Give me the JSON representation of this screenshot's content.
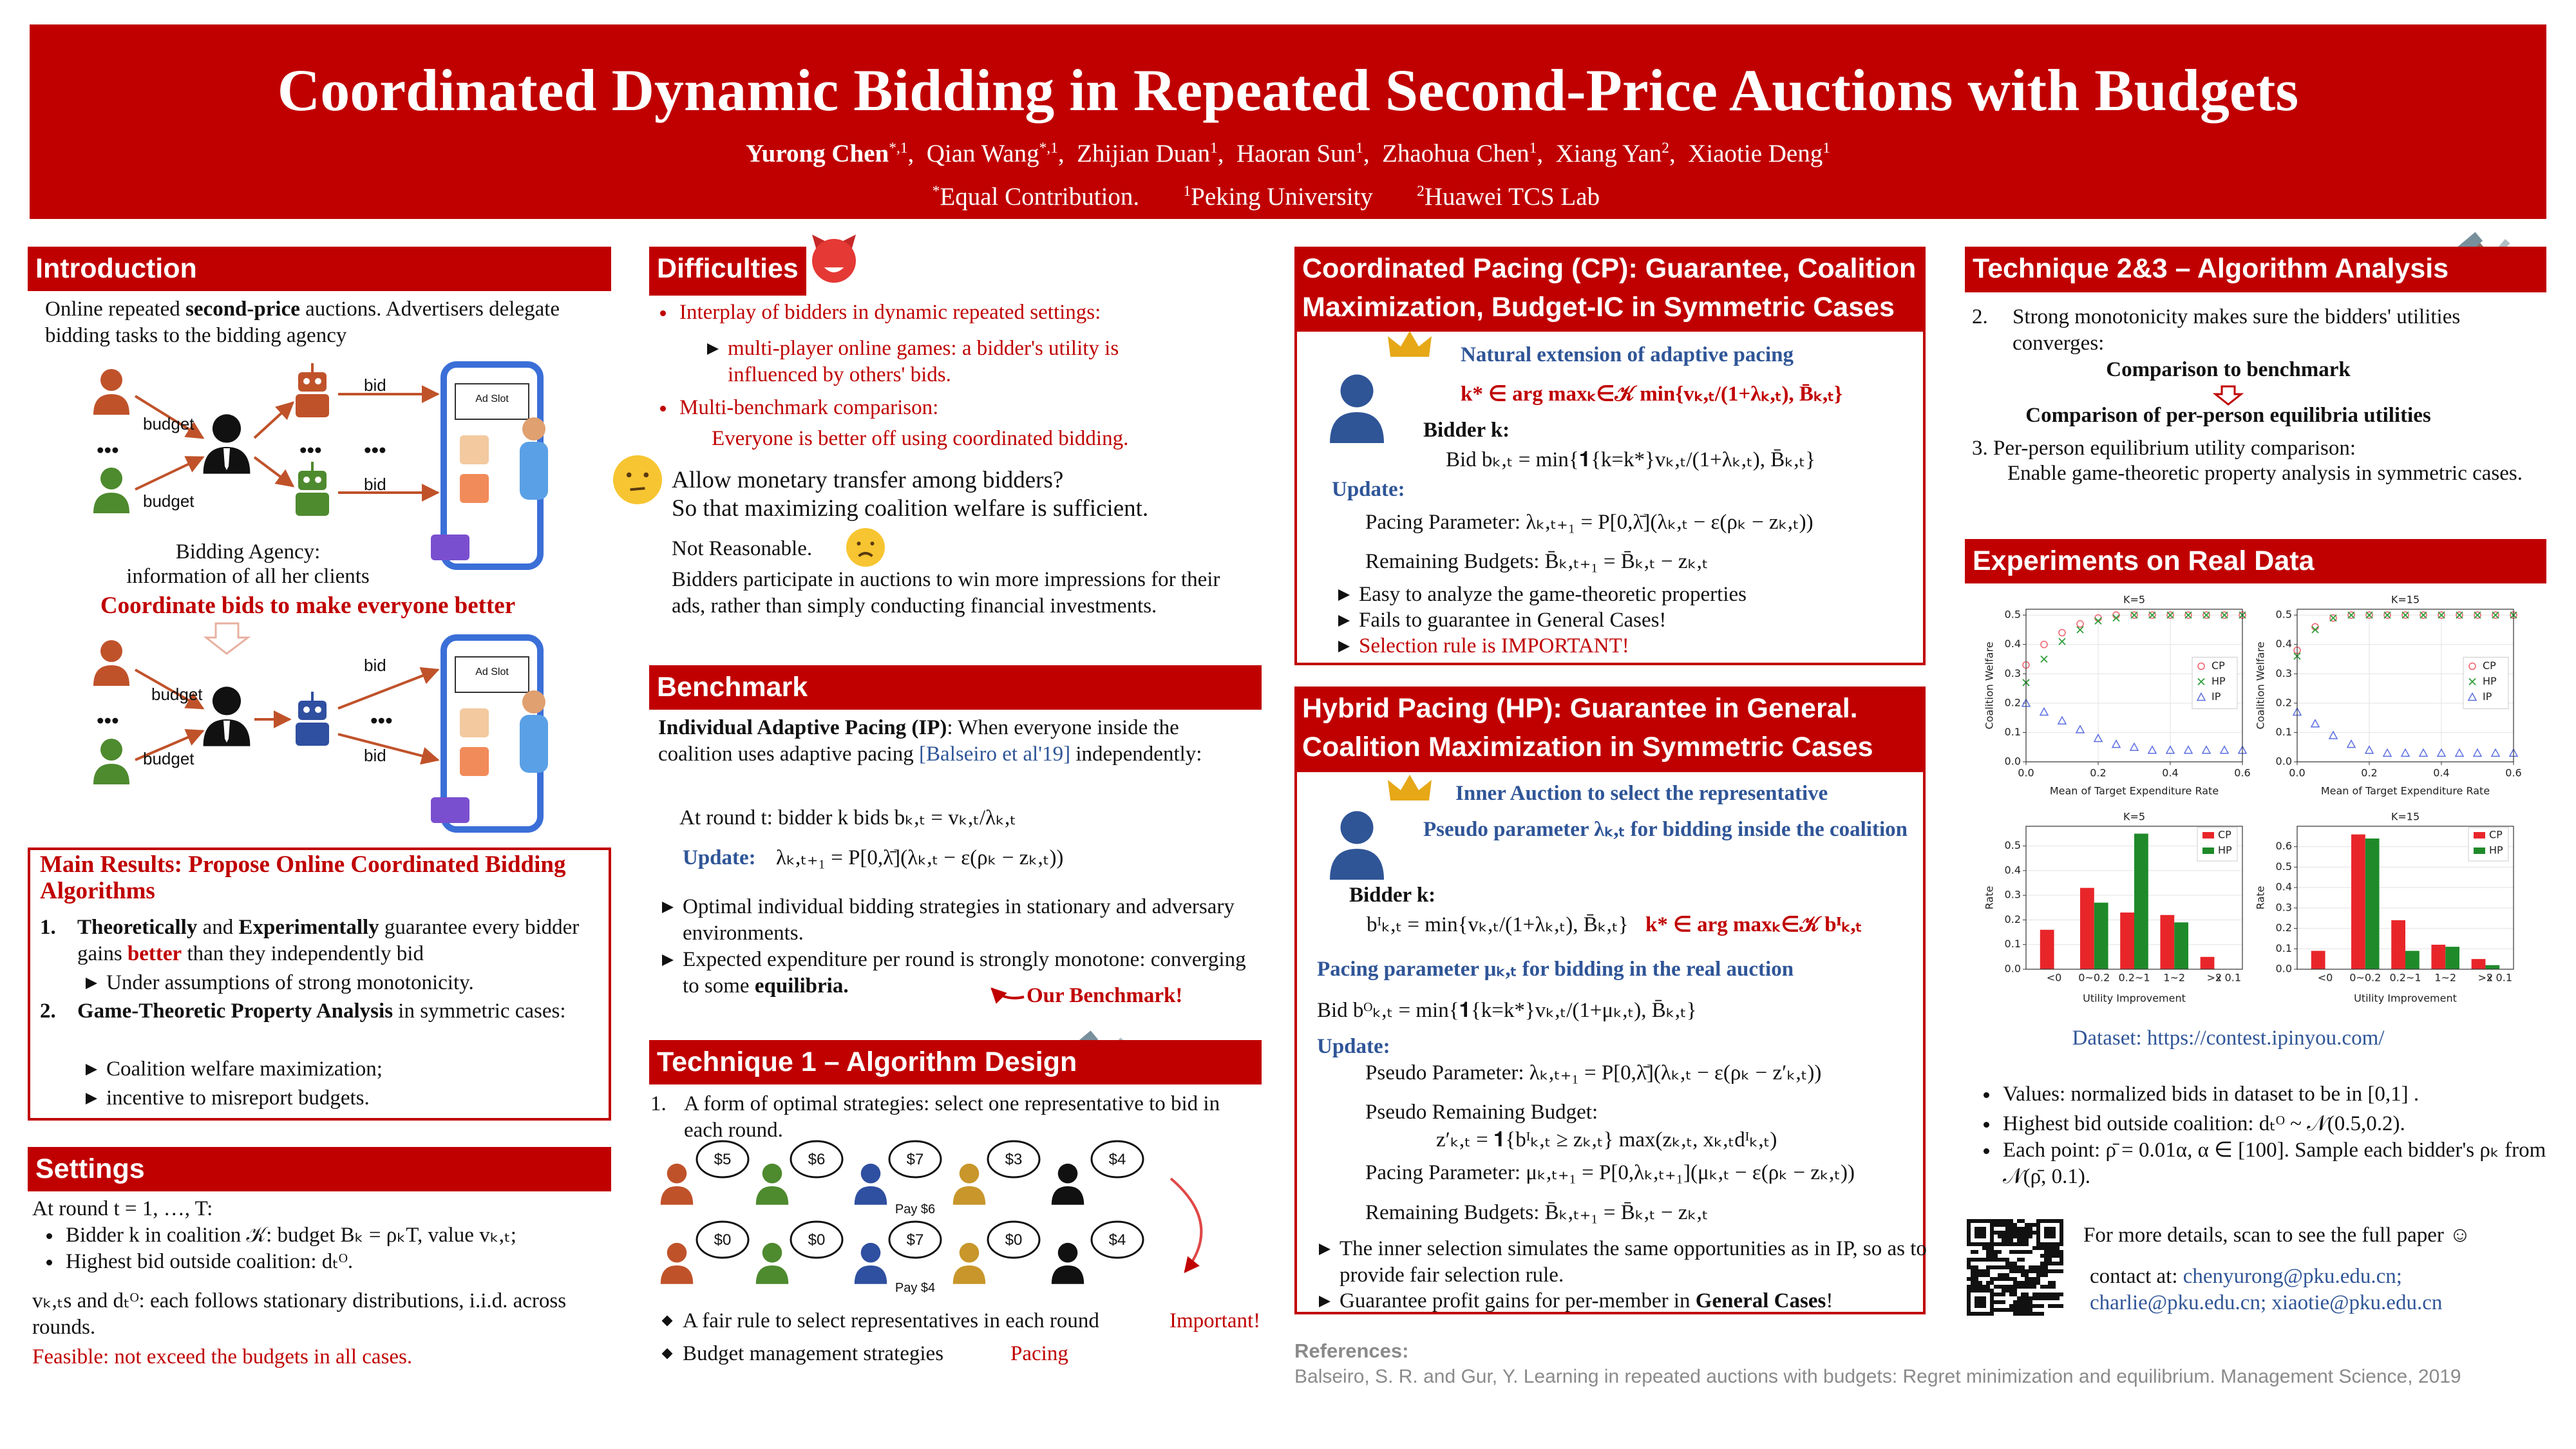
{
  "header": {
    "title": "Coordinated Dynamic Bidding in Repeated Second-Price Auctions with Budgets",
    "authors": [
      {
        "name": "Yurong Chen",
        "mark": "*,1"
      },
      {
        "name": "Qian Wang",
        "mark": "*,1"
      },
      {
        "name": "Zhijian Duan",
        "mark": "1"
      },
      {
        "name": "Haoran Sun",
        "mark": "1"
      },
      {
        "name": "Zhaohua Chen",
        "mark": "1"
      },
      {
        "name": "Xiang Yan",
        "mark": "2"
      },
      {
        "name": "Xiaotie Deng",
        "mark": "1"
      }
    ],
    "affiliations": [
      {
        "mark": "*",
        "text": "Equal Contribution."
      },
      {
        "mark": "1",
        "text": "Peking University"
      },
      {
        "mark": "2",
        "text": "Huawei TCS Lab"
      }
    ]
  },
  "introduction": {
    "heading": "Introduction",
    "text": [
      "Online repeated ",
      "second-price",
      " auctions. Advertisers delegate bidding tasks to the bidding agency"
    ],
    "budget": "budget",
    "bid": "bid",
    "ellipsis": "•••",
    "ad_slot": "Ad Slot",
    "agency": "Bidding Agency:",
    "agency_info": "information of all her clients",
    "goal": "Coordinate bids to make everyone better"
  },
  "main_results": {
    "heading": "Main Results: Propose Online Coordinated Bidding Algorithms",
    "items": [
      {
        "number": "1.",
        "text": [
          "Theoretically",
          " and ",
          "Experimentally",
          " guarantee every bidder gains ",
          "better",
          " than they independently bid"
        ],
        "subs": [
          "Under assumptions of strong monotonicity."
        ]
      },
      {
        "number": "2.",
        "text": [
          "Game-Theoretic Property Analysis",
          " in symmetric cases:"
        ],
        "subs": [
          "Coalition welfare maximization;",
          "incentive to misreport budgets."
        ]
      }
    ]
  },
  "settings": {
    "heading": "Settings",
    "round": "At round t = 1, …, T:",
    "bullets": [
      "Bidder k in coalition 𝒦: budget Bₖ = ρₖT, value vₖ,ₜ;",
      "Highest bid outside coalition: dₜᴼ."
    ],
    "distribution": "vₖ,ₜs and dₜᴼ:  each follows stationary distributions, i.i.d. across rounds.",
    "feasible": "Feasible: not exceed the budgets in all cases."
  },
  "difficulties": {
    "heading": "Difficulties",
    "bullet1": "Interplay of bidders in dynamic repeated settings:",
    "sub1": "multi-player online games: a bidder's utility is influenced by others' bids.",
    "bullet2": "Multi-benchmark comparison:",
    "sub2": "Everyone is better off using coordinated bidding.",
    "question": "Allow monetary transfer among bidders?",
    "question2": "So that maximizing coalition welfare is sufficient.",
    "answer": "Not Reasonable.",
    "reason": "Bidders participate in auctions to win more impressions for their ads, rather than simply conducting financial investments."
  },
  "benchmark": {
    "heading": "Benchmark",
    "intro": [
      "Individual Adaptive Pacing (IP)",
      ": When everyone inside the coalition uses adaptive pacing ",
      "[Balseiro et al'19]",
      " independently:"
    ],
    "round": "At round t: bidder k bids bₖ,ₜ = vₖ,ₜ/λₖ,ₜ",
    "update_label": "Update:",
    "update": "λₖ,ₜ₊₁ = P[0,λ̄](λₖ,ₜ − ε(ρₖ − zₖ,ₜ))",
    "bullet1": "Optimal individual bidding strategies in stationary and adversary environments.",
    "bullet2": [
      "Expected expenditure per round is strongly monotone: converging to some ",
      "equilibria."
    ],
    "note": "Our Benchmark!"
  },
  "technique1": {
    "heading": "Technique 1 – Algorithm Design",
    "number": "1.",
    "text": "A form of optimal strategies: select one representative to bid in each round.",
    "bids_row1": [
      "$5",
      "$6",
      "$7",
      "$3",
      "$4"
    ],
    "pay_row1": "Pay $6",
    "bids_row2": [
      "$0",
      "$0",
      "$7",
      "$0",
      "$4"
    ],
    "pay_row2": "Pay $4",
    "bullet1": "A fair rule to select representatives in each round",
    "note1": "Important!",
    "bullet2": "Budget management strategies",
    "note2": "Pacing"
  },
  "cp": {
    "heading": "Coordinated Pacing (CP): Guarantee, Coalition Maximization, Budget-IC in Symmetric Cases",
    "subtitle": "Natural extension of adaptive pacing",
    "select": "k* ∈ arg maxₖ∈𝒦 min{vₖ,ₜ/(1+λₖ,ₜ), B̄ₖ,ₜ}",
    "bidder": "Bidder k:",
    "bid": "Bid bₖ,ₜ = min{𝟏{k=k*}vₖ,ₜ/(1+λₖ,ₜ), B̄ₖ,ₜ}",
    "update_label": "Update:",
    "pacing": "Pacing Parameter: λₖ,ₜ₊₁ = P[0,λ̄](λₖ,ₜ − ε(ρₖ − zₖ,ₜ))",
    "remaining": "Remaining Budgets: B̄ₖ,ₜ₊₁ = B̄ₖ,ₜ − zₖ,ₜ",
    "bullets": [
      "Easy to analyze the game-theoretic properties",
      "Fails to guarantee in General Cases!",
      "Selection rule is IMPORTANT!"
    ]
  },
  "hp": {
    "heading": "Hybrid Pacing (HP): Guarantee in General. Coalition Maximization in Symmetric Cases",
    "inner": "Inner Auction to select the representative",
    "pseudo": "Pseudo parameter λₖ,ₜ for bidding inside the coalition",
    "bidder": "Bidder k:",
    "inner_bid": "bᴵₖ,ₜ = min{vₖ,ₜ/(1+λₖ,ₜ), B̄ₖ,ₜ}",
    "select": "k* ∈ arg maxₖ∈𝒦 bᴵₖ,ₜ",
    "pacing_intro": "Pacing parameter μₖ,ₜ for bidding in the real auction",
    "bid": "Bid bᴼₖ,ₜ = min{𝟏{k=k*}vₖ,ₜ/(1+μₖ,ₜ), B̄ₖ,ₜ}",
    "update_label": "Update:",
    "pseudo_param": "Pseudo Parameter: λₖ,ₜ₊₁ = P[0,λ̄](λₖ,ₜ − ε(ρₖ − z′ₖ,ₜ))",
    "pseudo_budget": "Pseudo Remaining Budget:",
    "pseudo_budget_formula": "z′ₖ,ₜ = 𝟏{bᴵₖ,ₜ ≥ zₖ,ₜ} max(zₖ,ₜ, xₖ,ₜdᴵₖ,ₜ)",
    "pacing": "Pacing Parameter: μₖ,ₜ₊₁ = P[0,λₖ,ₜ₊₁](μₖ,ₜ − ε(ρₖ − zₖ,ₜ))",
    "remaining": "Remaining Budgets: B̄ₖ,ₜ₊₁ = B̄ₖ,ₜ − zₖ,ₜ",
    "bullet1": "The inner selection simulates the same opportunities as in IP, so as to provide fair selection rule.",
    "bullet2": [
      "Guarantee profit gains for per-member in ",
      "General Cases",
      "!"
    ]
  },
  "references": {
    "heading": "References:",
    "text": "Balseiro, S. R. and Gur, Y. Learning in repeated auctions with budgets: Regret minimization and equilibrium. Management Science, 2019"
  },
  "technique23": {
    "heading": "Technique 2&3 – Algorithm Analysis",
    "number2": "2.",
    "text2": "Strong monotonicity makes sure the bidders' utilities converges:",
    "compare1": "Comparison to benchmark",
    "compare2": "Comparison of per-person equilibria utilities",
    "text3": "3. Per-person equilibrium utility comparison:",
    "text3b": "Enable game-theoretic property analysis in symmetric cases."
  },
  "experiments": {
    "heading": "Experiments on Real Data",
    "dataset": "Dataset: https://contest.ipinyou.com/",
    "bullets": [
      "Values: normalized bids in dataset to be in [0,1] .",
      "Highest bid outside coalition: dₜᴼ ~ 𝒩(0.5,0.2).",
      "Each point: ρ̄ = 0.01α, α ∈ [100]. Sample each bidder's ρₖ from 𝒩(ρ̄, 0.1)."
    ],
    "more": "For more details, scan to see the full paper ☺",
    "contact": [
      "contact at: ",
      "chenyurong@pku.edu.cn;"
    ],
    "contact2": "charlie@pku.edu.cn; xiaotie@pku.edu.cn"
  },
  "chart_data": [
    {
      "type": "scatter",
      "title": "K=5",
      "x_label": "Mean of Target Expenditure Rate",
      "y_label": "Coalition Welfare",
      "x": [
        0,
        0.05,
        0.1,
        0.15,
        0.2,
        0.25,
        0.3,
        0.35,
        0.4,
        0.45,
        0.5,
        0.55,
        0.6
      ],
      "series": [
        {
          "name": "CP",
          "color": "#f0606a",
          "marker": "circle",
          "values": [
            0.33,
            0.4,
            0.44,
            0.47,
            0.49,
            0.5,
            0.5,
            0.5,
            0.5,
            0.5,
            0.5,
            0.5,
            0.5
          ]
        },
        {
          "name": "HP",
          "color": "#2e9e3a",
          "marker": "x",
          "values": [
            0.27,
            0.35,
            0.41,
            0.45,
            0.48,
            0.49,
            0.5,
            0.5,
            0.5,
            0.5,
            0.5,
            0.5,
            0.5
          ]
        },
        {
          "name": "IP",
          "color": "#5a6ee0",
          "marker": "triangle",
          "values": [
            0.2,
            0.17,
            0.14,
            0.11,
            0.08,
            0.06,
            0.05,
            0.04,
            0.04,
            0.04,
            0.04,
            0.04,
            0.04
          ]
        }
      ],
      "xlim": [
        0,
        0.6
      ],
      "ylim": [
        0,
        0.52
      ],
      "xticks": [
        {
          "value": 0,
          "label": "0.0"
        },
        0.2,
        0.4,
        0.6
      ],
      "yticks": [
        {
          "value": 0,
          "label": "0.0"
        },
        0.1,
        0.2,
        0.3,
        0.4,
        0.5
      ],
      "legend": "right",
      "grid": true
    },
    {
      "type": "scatter",
      "title": "K=15",
      "x_label": "Mean of Target Expenditure Rate",
      "y_label": "Coalition Welfare",
      "x": [
        0,
        0.05,
        0.1,
        0.15,
        0.2,
        0.25,
        0.3,
        0.35,
        0.4,
        0.45,
        0.5,
        0.55,
        0.6
      ],
      "series": [
        {
          "name": "CP",
          "color": "#f0606a",
          "marker": "circle",
          "values": [
            0.38,
            0.46,
            0.49,
            0.5,
            0.5,
            0.5,
            0.5,
            0.5,
            0.5,
            0.5,
            0.5,
            0.5,
            0.5
          ]
        },
        {
          "name": "HP",
          "color": "#2e9e3a",
          "marker": "x",
          "values": [
            0.36,
            0.45,
            0.49,
            0.5,
            0.5,
            0.5,
            0.5,
            0.5,
            0.5,
            0.5,
            0.5,
            0.5,
            0.5
          ]
        },
        {
          "name": "IP",
          "color": "#5a6ee0",
          "marker": "triangle",
          "values": [
            0.17,
            0.13,
            0.09,
            0.06,
            0.04,
            0.03,
            0.03,
            0.03,
            0.03,
            0.03,
            0.03,
            0.03,
            0.03
          ]
        }
      ],
      "xlim": [
        0,
        0.6
      ],
      "ylim": [
        0,
        0.52
      ],
      "xticks": [
        {
          "value": 0,
          "label": "0.0"
        },
        0.2,
        0.4,
        0.6
      ],
      "yticks": [
        {
          "value": 0,
          "label": "0.0"
        },
        0.1,
        0.2,
        0.3,
        0.4,
        0.5
      ],
      "legend": "right",
      "grid": true
    },
    {
      "type": "bar",
      "title": "K=5",
      "x_label": "Utility Improvement",
      "y_label": "Rate",
      "x_note": "x 0.1",
      "categories": [
        "<0",
        "0~0.2",
        "0.2~1",
        "1~2",
        ">2"
      ],
      "series": [
        {
          "name": "CP",
          "color": "#e8262a",
          "values": [
            0.16,
            0.33,
            0.23,
            0.22,
            0.05
          ]
        },
        {
          "name": "HP",
          "color": "#1f8a2a",
          "values": [
            0,
            0.27,
            0.55,
            0.19,
            0
          ]
        }
      ],
      "ylim": [
        0,
        0.58
      ],
      "yticks": [
        {
          "value": 0,
          "label": "0.0"
        },
        0.1,
        0.2,
        0.3,
        0.4,
        0.5
      ],
      "legend": "upper right",
      "grid": true
    },
    {
      "type": "bar",
      "title": "K=15",
      "x_label": "Utility Improvement",
      "y_label": "Rate",
      "x_note": "x 0.1",
      "categories": [
        "<0",
        "0~0.2",
        "0.2~1",
        "1~2",
        ">2"
      ],
      "series": [
        {
          "name": "CP",
          "color": "#e8262a",
          "values": [
            0.09,
            0.66,
            0.24,
            0.12,
            0.05
          ]
        },
        {
          "name": "HP",
          "color": "#1f8a2a",
          "values": [
            0,
            0.64,
            0.09,
            0.11,
            0.02
          ]
        }
      ],
      "ylim": [
        0,
        0.7
      ],
      "yticks": [
        {
          "value": 0,
          "label": "0.0"
        },
        0.1,
        0.2,
        0.3,
        0.4,
        0.5,
        0.6
      ],
      "legend": "upper right",
      "grid": true
    }
  ]
}
